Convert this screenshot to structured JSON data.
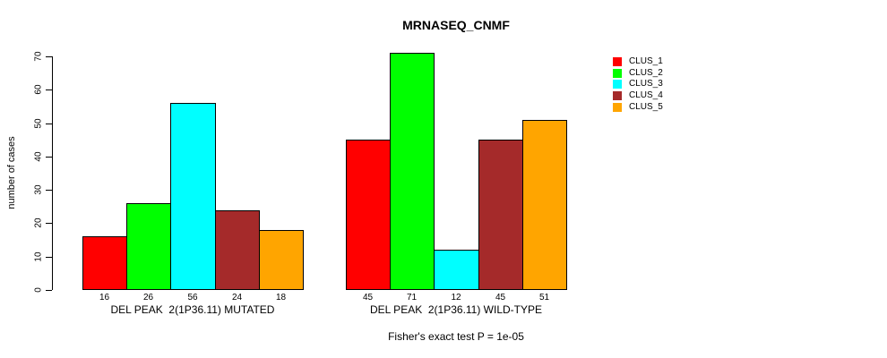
{
  "chart_data": {
    "type": "bar",
    "title": "MRNASEQ_CNMF",
    "ylabel": "number of cases",
    "xlabel": "",
    "ylim": [
      0,
      70
    ],
    "yticks": [
      0,
      10,
      20,
      30,
      40,
      50,
      60,
      70
    ],
    "grid": false,
    "legend_position": "right",
    "show_bar_values": true,
    "categories": [
      "DEL PEAK  2(1P36.11) MUTATED",
      "DEL PEAK  2(1P36.11) WILD-TYPE"
    ],
    "series": [
      {
        "name": "CLUS_1",
        "color": "#ff0000",
        "values": [
          16,
          45
        ]
      },
      {
        "name": "CLUS_2",
        "color": "#00ff00",
        "values": [
          26,
          71
        ]
      },
      {
        "name": "CLUS_3",
        "color": "#00ffff",
        "values": [
          56,
          12
        ]
      },
      {
        "name": "CLUS_4",
        "color": "#a52a2a",
        "values": [
          24,
          45
        ]
      },
      {
        "name": "CLUS_5",
        "color": "#ffa500",
        "values": [
          18,
          51
        ]
      }
    ],
    "annotation": "Fisher's exact test P = 1e-05"
  }
}
